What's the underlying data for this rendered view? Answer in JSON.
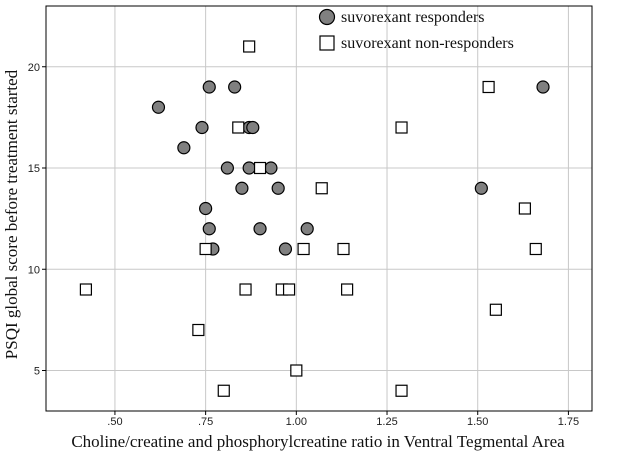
{
  "chart_data": {
    "type": "scatter",
    "xlabel": "Choline/creatine and phosphorylcreatine ratio in Ventral Tegmental Area",
    "ylabel": "PSQI global score before treatment started",
    "xlim": [
      0.31,
      1.815
    ],
    "ylim": [
      3.0,
      23.0
    ],
    "x_ticks": [
      {
        "value": 0.5,
        "label": ".50"
      },
      {
        "value": 0.75,
        "label": ".75"
      },
      {
        "value": 1.0,
        "label": "1.00"
      },
      {
        "value": 1.25,
        "label": "1.25"
      },
      {
        "value": 1.5,
        "label": "1.50"
      },
      {
        "value": 1.75,
        "label": "1.75"
      }
    ],
    "y_ticks": [
      {
        "value": 5,
        "label": "5"
      },
      {
        "value": 10,
        "label": "10"
      },
      {
        "value": 15,
        "label": "15"
      },
      {
        "value": 20,
        "label": "20"
      }
    ],
    "grid": true,
    "legend_position": "top-right",
    "series": [
      {
        "name": "suvorexant responders",
        "marker": "circle",
        "color": "#808080",
        "points": [
          {
            "x": 0.62,
            "y": 18
          },
          {
            "x": 0.69,
            "y": 16
          },
          {
            "x": 0.74,
            "y": 17
          },
          {
            "x": 0.76,
            "y": 19
          },
          {
            "x": 0.83,
            "y": 19
          },
          {
            "x": 0.75,
            "y": 13
          },
          {
            "x": 0.76,
            "y": 12
          },
          {
            "x": 0.77,
            "y": 11
          },
          {
            "x": 0.81,
            "y": 15
          },
          {
            "x": 0.85,
            "y": 14
          },
          {
            "x": 0.87,
            "y": 17
          },
          {
            "x": 0.88,
            "y": 17
          },
          {
            "x": 0.87,
            "y": 15
          },
          {
            "x": 0.93,
            "y": 15
          },
          {
            "x": 0.95,
            "y": 14
          },
          {
            "x": 0.9,
            "y": 12
          },
          {
            "x": 0.97,
            "y": 11
          },
          {
            "x": 1.03,
            "y": 12
          },
          {
            "x": 1.51,
            "y": 14
          },
          {
            "x": 1.68,
            "y": 19
          }
        ]
      },
      {
        "name": "suvorexant non-responders",
        "marker": "square",
        "color": "#ffffff",
        "points": [
          {
            "x": 0.42,
            "y": 9
          },
          {
            "x": 0.73,
            "y": 7
          },
          {
            "x": 0.75,
            "y": 11
          },
          {
            "x": 0.8,
            "y": 4
          },
          {
            "x": 0.84,
            "y": 17
          },
          {
            "x": 0.86,
            "y": 9
          },
          {
            "x": 0.87,
            "y": 21
          },
          {
            "x": 0.9,
            "y": 15
          },
          {
            "x": 0.96,
            "y": 9
          },
          {
            "x": 0.98,
            "y": 9
          },
          {
            "x": 1.0,
            "y": 5
          },
          {
            "x": 1.02,
            "y": 11
          },
          {
            "x": 1.07,
            "y": 14
          },
          {
            "x": 1.13,
            "y": 11
          },
          {
            "x": 1.14,
            "y": 9
          },
          {
            "x": 1.29,
            "y": 17
          },
          {
            "x": 1.29,
            "y": 4
          },
          {
            "x": 1.53,
            "y": 19
          },
          {
            "x": 1.55,
            "y": 8
          },
          {
            "x": 1.63,
            "y": 13
          },
          {
            "x": 1.66,
            "y": 11
          }
        ]
      }
    ]
  }
}
